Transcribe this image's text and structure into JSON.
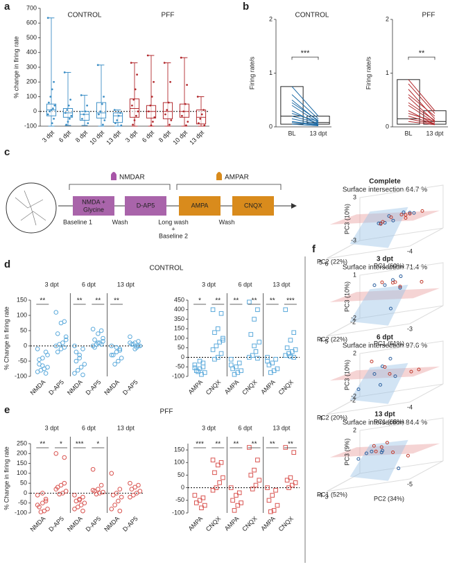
{
  "panel_labels": [
    "a",
    "b",
    "c",
    "d",
    "e",
    "f"
  ],
  "diagram": {
    "receptors": [
      "NMDAR",
      "AMPAR"
    ],
    "steps": [
      [
        "NMDA +",
        "Glycine"
      ],
      [
        "D-AP5"
      ],
      [
        "AMPA"
      ],
      [
        "CNQX"
      ]
    ],
    "phases": [
      [
        "Baseline 1"
      ],
      [
        "Wash"
      ],
      [
        "Long wash",
        "+",
        "Baseline 2"
      ],
      [
        "Wash"
      ]
    ]
  },
  "chart_data": [
    {
      "type": "box",
      "ylabel": "% change in firing rate",
      "titles": [
        "CONTROL",
        "PFF"
      ],
      "title_colors": [
        "#3d8fc6",
        "#b22a2e"
      ],
      "categories": [
        "3 dpt",
        "6 dpt",
        "8 dpt",
        "10 dpt",
        "13 dpt",
        "3 dpt",
        "6 dpt",
        "8 dpt",
        "10 dpt",
        "13 dpt"
      ],
      "colors": [
        "#3d8fc6",
        "#3d8fc6",
        "#3d8fc6",
        "#3d8fc6",
        "#3d8fc6",
        "#b22a2e",
        "#b22a2e",
        "#b22a2e",
        "#b22a2e",
        "#b22a2e"
      ],
      "ylim": [
        -100,
        700
      ],
      "yticks": [
        -100,
        0,
        100,
        200,
        300,
        400,
        500,
        600,
        700
      ],
      "boxes": [
        {
          "min": -100,
          "q1": -30,
          "median": 10,
          "q3": 50,
          "max": 635
        },
        {
          "min": -95,
          "q1": -40,
          "median": -10,
          "q3": 20,
          "max": 265
        },
        {
          "min": -95,
          "q1": -60,
          "median": -20,
          "q3": 0,
          "max": 110
        },
        {
          "min": -100,
          "q1": -45,
          "median": -10,
          "q3": 60,
          "max": 315
        },
        {
          "min": -100,
          "q1": -75,
          "median": -30,
          "q3": -10,
          "max": 10
        },
        {
          "min": -100,
          "q1": -40,
          "median": 20,
          "q3": 85,
          "max": 330
        },
        {
          "min": -100,
          "q1": -45,
          "median": 0,
          "q3": 40,
          "max": 380
        },
        {
          "min": -100,
          "q1": -50,
          "median": 0,
          "q3": 60,
          "max": 330
        },
        {
          "min": -100,
          "q1": -40,
          "median": 0,
          "q3": 50,
          "max": 365
        },
        {
          "min": -100,
          "q1": -85,
          "median": -40,
          "q3": 10,
          "max": 100
        }
      ],
      "points": [
        [
          635,
          200,
          150,
          100,
          60,
          40,
          20,
          10,
          0,
          -20,
          -50,
          -80
        ],
        [
          265,
          80,
          40,
          10,
          -10,
          -30,
          -50,
          -70,
          -90
        ],
        [
          110,
          40,
          0,
          -20,
          -50,
          -80
        ],
        [
          315,
          100,
          50,
          0,
          -20,
          -60,
          -90
        ],
        [
          10,
          -10,
          -30,
          -60,
          -80,
          -95
        ],
        [
          330,
          250,
          150,
          80,
          40,
          0,
          -30,
          -60,
          -90
        ],
        [
          380,
          200,
          100,
          40,
          0,
          -40,
          -70,
          -95
        ],
        [
          330,
          200,
          60,
          10,
          -20,
          -60,
          -90
        ],
        [
          365,
          180,
          50,
          0,
          -30,
          -70,
          -95
        ],
        [
          100,
          10,
          -20,
          -50,
          -80,
          -95
        ]
      ]
    },
    {
      "type": "paired",
      "title": "CONTROL",
      "title_color": "#3d8fc6",
      "ylabel": "Firing rate/s",
      "color": "#1b6aa5",
      "categories": [
        "BL",
        "13 dpt"
      ],
      "ylim": [
        0,
        2
      ],
      "yticks": [
        0,
        1,
        2
      ],
      "boxes": [
        {
          "q1": 0.05,
          "median": 0.2,
          "q3": 0.75
        },
        {
          "q1": 0.05,
          "median": 0.08,
          "q3": 0.2
        }
      ],
      "values": [
        [
          0.75,
          0.2
        ],
        [
          0.6,
          0.15
        ],
        [
          0.5,
          0.1
        ],
        [
          0.45,
          0.12
        ],
        [
          0.4,
          0.08
        ],
        [
          0.3,
          0.05
        ],
        [
          0.25,
          0.1
        ],
        [
          0.2,
          0.07
        ],
        [
          0.15,
          0.05
        ],
        [
          0.1,
          0.04
        ],
        [
          0.08,
          0.03
        ],
        [
          0.05,
          0.02
        ]
      ],
      "significance": "***"
    },
    {
      "type": "paired",
      "title": "PFF",
      "title_color": "#b22a2e",
      "ylabel": "Firing rate/s",
      "color": "#b22a2e",
      "categories": [
        "BL",
        "13 dpt"
      ],
      "ylim": [
        0,
        2
      ],
      "yticks": [
        0,
        1,
        2
      ],
      "boxes": [
        {
          "q1": 0.05,
          "median": 0.15,
          "q3": 0.88
        },
        {
          "q1": 0.05,
          "median": 0.1,
          "q3": 0.3
        }
      ],
      "values": [
        [
          0.88,
          0.3
        ],
        [
          0.8,
          0.25
        ],
        [
          0.7,
          0.15
        ],
        [
          0.6,
          0.2
        ],
        [
          0.55,
          0.1
        ],
        [
          0.45,
          0.12
        ],
        [
          0.4,
          0.08
        ],
        [
          0.3,
          0.05
        ],
        [
          0.25,
          0.1
        ],
        [
          0.2,
          0.06
        ],
        [
          0.15,
          0.05
        ],
        [
          0.1,
          0.04
        ]
      ],
      "significance": "**"
    },
    {
      "type": "dot",
      "title": "CONTROL",
      "title_color": "#3d8fc6",
      "ylabel": "% Change in firing rate",
      "marker": "circle",
      "color": "#5aa9db",
      "groups": [
        "3 dpt",
        "6 dpt",
        "13 dpt"
      ],
      "categories": [
        "NMDA",
        "D-AP5",
        "NMDA",
        "D-AP5",
        "NMDA",
        "D-AP5"
      ],
      "ylim": [
        -100,
        150
      ],
      "yticks": [
        -100,
        -50,
        0,
        50,
        100,
        150
      ],
      "axis_break": false,
      "values": [
        [
          -10,
          -20,
          -40,
          -60,
          -70,
          -75,
          -80,
          -85,
          -90,
          -65,
          -45,
          -30
        ],
        [
          110,
          80,
          75,
          40,
          20,
          10,
          5,
          0,
          -5,
          -10,
          -20,
          30
        ],
        [
          0,
          -10,
          -30,
          -50,
          -60,
          -70,
          -80,
          -90,
          -95,
          -40,
          -20
        ],
        [
          55,
          50,
          40,
          20,
          15,
          10,
          5,
          0,
          5,
          10,
          -5,
          25
        ],
        [
          0,
          -10,
          -20,
          -30,
          -40,
          -50,
          -60,
          -30,
          -15,
          -5
        ],
        [
          30,
          15,
          10,
          5,
          0,
          -5,
          5,
          10,
          0,
          -10
        ]
      ],
      "significance": [
        "**",
        null,
        "**",
        "**",
        "**",
        null
      ]
    },
    {
      "type": "dot",
      "marker": "square",
      "color": "#5aa9db",
      "groups": [
        "3 dpt",
        "6 dpt",
        "13 dpt"
      ],
      "categories": [
        "AMPA",
        "CNQX",
        "AMPA",
        "CNQX",
        "AMPA",
        "CNQX"
      ],
      "ylim": [
        -100,
        450
      ],
      "yticks": [
        -100,
        -50,
        0,
        50,
        100,
        150,
        350,
        400,
        450
      ],
      "axis_break": true,
      "values": [
        [
          -40,
          -50,
          -60,
          -70,
          -80,
          -90,
          -75,
          -55,
          -30,
          -20
        ],
        [
          400,
          380,
          150,
          130,
          100,
          80,
          60,
          40,
          20,
          0,
          -10,
          90
        ],
        [
          -10,
          -30,
          -50,
          -60,
          -70,
          -80,
          -90,
          -40
        ],
        [
          440,
          400,
          350,
          120,
          80,
          30,
          10,
          0,
          -5,
          60
        ],
        [
          0,
          -10,
          -30,
          -40,
          -60,
          -70,
          -80,
          -20
        ],
        [
          400,
          130,
          90,
          50,
          40,
          30,
          20,
          10,
          0,
          5
        ]
      ],
      "significance": [
        "*",
        "**",
        "**",
        "**",
        "**",
        "***"
      ]
    },
    {
      "type": "dot",
      "title": "PFF",
      "title_color": "#b22a2e",
      "ylabel": "% Change in firing rate",
      "marker": "circle",
      "color": "#d9534f",
      "groups": [
        "3 dpt",
        "6 dpt",
        "13 dpt"
      ],
      "categories": [
        "NMDA",
        "D-AP5",
        "NMDA",
        "D-AP5",
        "NMDA",
        "D-AP5"
      ],
      "ylim": [
        -100,
        250
      ],
      "yticks": [
        -100,
        -50,
        0,
        50,
        100,
        150,
        200,
        250
      ],
      "axis_break": true,
      "values": [
        [
          -10,
          -30,
          -50,
          -70,
          -80,
          -90,
          -95,
          -60,
          -40,
          0
        ],
        [
          200,
          180,
          40,
          30,
          10,
          0,
          -5,
          20,
          50
        ],
        [
          -10,
          -20,
          -30,
          -40,
          -50,
          -60,
          -70,
          -80,
          -90,
          -35
        ],
        [
          120,
          40,
          20,
          10,
          5,
          0,
          -5,
          15
        ],
        [
          100,
          20,
          0,
          -10,
          -20,
          -40,
          -60,
          -80,
          -90
        ],
        [
          50,
          40,
          30,
          20,
          10,
          0,
          -10,
          -20
        ]
      ],
      "significance": [
        "**",
        "*",
        "***",
        "*",
        null,
        null
      ]
    },
    {
      "type": "dot",
      "marker": "square",
      "color": "#d9534f",
      "groups": [
        "3 dpt",
        "6 dpt",
        "13 dpt"
      ],
      "categories": [
        "AMPA",
        "CNQX",
        "AMPA",
        "CNQX",
        "AMPA",
        "CNQX"
      ],
      "ylim": [
        -100,
        175
      ],
      "yticks": [
        -100,
        -50,
        0,
        50,
        100,
        150
      ],
      "axis_break": false,
      "values": [
        [
          -30,
          -40,
          -50,
          -60,
          -70,
          -80
        ],
        [
          110,
          100,
          90,
          60,
          40,
          20,
          0,
          -10
        ],
        [
          0,
          -20,
          -30,
          -50,
          -60,
          -70,
          -90
        ],
        [
          160,
          110,
          70,
          50,
          30,
          10,
          -5
        ],
        [
          0,
          -10,
          -30,
          -50,
          -70,
          -90,
          -95
        ],
        [
          160,
          140,
          40,
          30,
          20,
          10,
          0
        ]
      ],
      "significance": [
        "***",
        "**",
        "**",
        "**",
        "**",
        "**"
      ]
    },
    {
      "type": "scatter3d",
      "title": "Complete",
      "subtitle": "Surface intersection 64.7 %",
      "xlabel": "PC1 (60%)",
      "ylabel": "PC2 (22%)",
      "zlabel": "PC3 (10%)",
      "xlim": [
        6,
        -4
      ],
      "ylim": [
        -3,
        5
      ],
      "zlim": [
        -3,
        3
      ],
      "xticks": [
        6,
        -4
      ],
      "yticks": [
        5
      ],
      "zticks": [
        -3,
        3
      ],
      "series": [
        {
          "color": "#2b5f9e",
          "x": [
            1,
            0,
            -1,
            2,
            -2,
            0.5,
            -0.5,
            1.5
          ],
          "y": [
            0,
            1,
            -1,
            0.5,
            0,
            2,
            -0.5,
            1
          ],
          "z": [
            0.5,
            0,
            0.3,
            -0.2,
            0.4,
            0.1,
            0.6,
            -0.1
          ]
        },
        {
          "color": "#c0392b",
          "x": [
            -1,
            -2,
            0,
            1,
            -3,
            2,
            -1.5,
            0.5
          ],
          "y": [
            0,
            1,
            -1,
            2,
            0,
            -0.5,
            1,
            0.5
          ],
          "z": [
            0.3,
            0.6,
            0.2,
            0,
            0.5,
            -0.3,
            0.1,
            0.4
          ]
        }
      ]
    },
    {
      "type": "scatter3d",
      "title": "3 dpt",
      "subtitle": "Surface intersection 71.4 %",
      "xlabel": "PC1 (61%)",
      "ylabel": "PC2 (22%)",
      "zlabel": "PC3 (10%)",
      "xlim": [
        5,
        -3
      ],
      "ylim": [
        -2,
        4
      ],
      "zlim": [
        -2,
        1
      ],
      "xticks": [
        5,
        -3
      ],
      "yticks": [
        -2,
        4
      ],
      "zticks": [
        -2,
        1
      ],
      "series": [
        {
          "color": "#2b5f9e",
          "x": [
            1,
            0,
            -1,
            2,
            1.5,
            0.5
          ],
          "y": [
            1,
            0,
            2,
            1,
            -1,
            0.5
          ],
          "z": [
            0.5,
            0.8,
            0.3,
            0.6,
            -1.5,
            0.7
          ]
        },
        {
          "color": "#c0392b",
          "x": [
            0,
            -1,
            -2,
            1,
            0.5
          ],
          "y": [
            1,
            2,
            0,
            1.5,
            0.5
          ],
          "z": [
            0.6,
            0.4,
            0.2,
            0.8,
            0.5
          ]
        }
      ]
    },
    {
      "type": "scatter3d",
      "title": "6 dpt",
      "subtitle": "Surface intersection 97.6 %",
      "xlabel": "PC1 (68%)",
      "ylabel": "PC2 (20%)",
      "zlabel": "PC3 (10%)",
      "xlim": [
        4,
        -4
      ],
      "ylim": [
        -2,
        4
      ],
      "zlim": [
        -2,
        2
      ],
      "xticks": [
        -4
      ],
      "yticks": [
        -2,
        4
      ],
      "zticks": [
        -2,
        2
      ],
      "series": [
        {
          "color": "#2b5f9e",
          "x": [
            1,
            0,
            2,
            -1,
            1.5,
            0.5
          ],
          "y": [
            1,
            0,
            2,
            1,
            -1,
            0.5
          ],
          "z": [
            0.5,
            1.5,
            -0.5,
            0,
            -1,
            1
          ]
        },
        {
          "color": "#c0392b",
          "x": [
            0,
            -1,
            -2,
            1,
            -3
          ],
          "y": [
            1,
            2,
            0,
            1.5,
            0.5
          ],
          "z": [
            1,
            0.5,
            0,
            1.8,
            0.2
          ]
        }
      ]
    },
    {
      "type": "scatter3d",
      "title": "13 dpt",
      "subtitle": "Surface intersection 84.4 %",
      "xlabel": "PC2 (34%)",
      "ylabel": "PC1 (52%)",
      "zlabel": "PC3 (9%)",
      "xlim": [
        3,
        -5
      ],
      "ylim": [
        3,
        -4
      ],
      "zlim": [
        -2,
        2
      ],
      "xticks": [
        3,
        -5
      ],
      "yticks": [
        -4
      ],
      "zticks": [
        2
      ],
      "series": [
        {
          "color": "#2b5f9e",
          "x": [
            1,
            0,
            -1,
            2,
            0.5,
            -3
          ],
          "y": [
            0,
            1,
            -1,
            0.5,
            0,
            -2
          ],
          "z": [
            0.3,
            0,
            0.5,
            -0.2,
            0.4,
            -1.2
          ]
        },
        {
          "color": "#c0392b",
          "x": [
            0,
            -1,
            -2,
            1,
            -3,
            0.5
          ],
          "y": [
            1,
            0,
            -1,
            2,
            0,
            0.5
          ],
          "z": [
            0.5,
            1,
            0.2,
            0,
            -0.5,
            0.8
          ]
        }
      ]
    }
  ]
}
